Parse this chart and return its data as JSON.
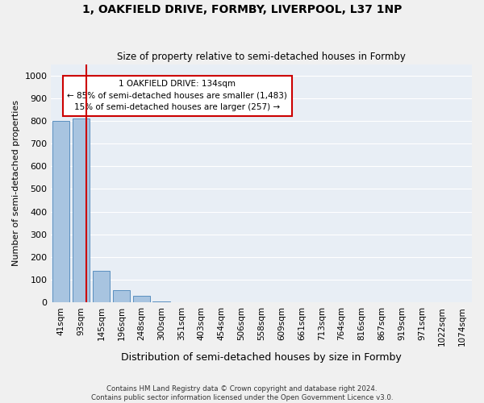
{
  "title": "1, OAKFIELD DRIVE, FORMBY, LIVERPOOL, L37 1NP",
  "subtitle": "Size of property relative to semi-detached houses in Formby",
  "xlabel": "Distribution of semi-detached houses by size in Formby",
  "ylabel": "Number of semi-detached properties",
  "footer_line1": "Contains HM Land Registry data © Crown copyright and database right 2024.",
  "footer_line2": "Contains public sector information licensed under the Open Government Licence v3.0.",
  "bin_labels": [
    "41sqm",
    "93sqm",
    "145sqm",
    "196sqm",
    "248sqm",
    "300sqm",
    "351sqm",
    "403sqm",
    "454sqm",
    "506sqm",
    "558sqm",
    "609sqm",
    "661sqm",
    "713sqm",
    "764sqm",
    "816sqm",
    "867sqm",
    "919sqm",
    "971sqm",
    "1022sqm",
    "1074sqm"
  ],
  "bar_heights": [
    800,
    810,
    140,
    55,
    30,
    5,
    0,
    0,
    0,
    0,
    0,
    0,
    0,
    0,
    0,
    0,
    0,
    0,
    0,
    0,
    0
  ],
  "bar_color": "#a8c4e0",
  "bar_edge_color": "#5a8fbf",
  "property_size": 134,
  "property_bin_index": 1,
  "vline_color": "#cc0000",
  "annotation_line1": "1 OAKFIELD DRIVE: 134sqm",
  "annotation_line2": "← 85% of semi-detached houses are smaller (1,483)",
  "annotation_line3": "15% of semi-detached houses are larger (257) →",
  "ylim": [
    0,
    1050
  ],
  "yticks": [
    0,
    100,
    200,
    300,
    400,
    500,
    600,
    700,
    800,
    900,
    1000
  ],
  "background_color": "#e8eef5",
  "grid_color": "#ffffff",
  "annotation_box_color": "#ffffff",
  "annotation_box_edge": "#cc0000"
}
